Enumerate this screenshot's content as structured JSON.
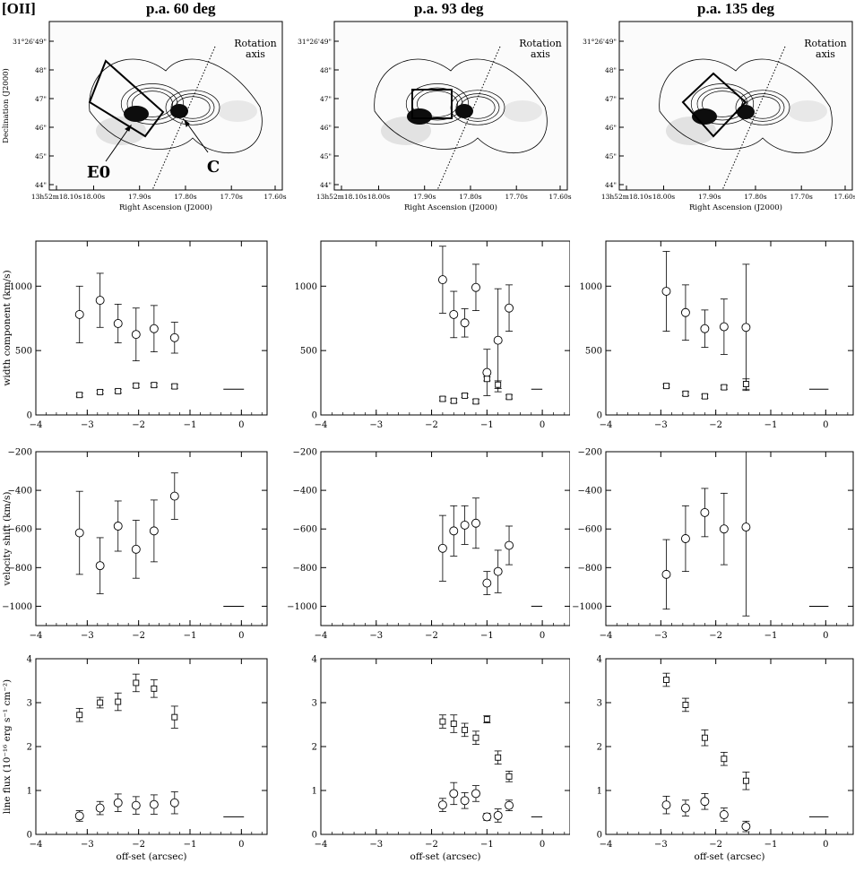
{
  "figure": {
    "label": "[OII]",
    "columns": [
      "p.a. 60 deg",
      "p.a. 93 deg",
      "p.a. 135 deg"
    ]
  },
  "images": {
    "ra_label": "Right Ascension (J2000)",
    "dec_label": "Declination (J2000)",
    "ra_ticks": [
      "13h52m18.10s",
      "18.00s",
      "17.90s",
      "17.80s",
      "17.70s",
      "17.60s"
    ],
    "dec_ticks": [
      "31°26'49\"",
      "48\"",
      "47\"",
      "46\"",
      "45\"",
      "44\""
    ],
    "rotation_label_1": "Rotation",
    "rotation_label_2": "axis",
    "label_e0": "E0",
    "label_c": "C"
  },
  "chart_data": [
    {
      "type": "scatter",
      "row": "width",
      "column": "p.a. 60 deg",
      "ylabel": "width component (km/s)",
      "xlim": [
        -4,
        0.5
      ],
      "ylim": [
        0,
        1350
      ],
      "xticks": [
        -4,
        -3,
        -2,
        -1,
        0
      ],
      "yticks": [
        0,
        500,
        1000
      ],
      "series": [
        {
          "marker": "circle",
          "points": [
            [
              -3.15,
              780,
              220
            ],
            [
              -2.75,
              890,
              210
            ],
            [
              -2.4,
              710,
              150
            ],
            [
              -2.05,
              625,
              205
            ],
            [
              -1.7,
              670,
              180
            ],
            [
              -1.3,
              600,
              120
            ]
          ]
        },
        {
          "marker": "square",
          "points": [
            [
              -3.15,
              155,
              15
            ],
            [
              -2.75,
              178,
              15
            ],
            [
              -2.4,
              185,
              15
            ],
            [
              -2.05,
              228,
              15
            ],
            [
              -1.7,
              232,
              15
            ],
            [
              -1.3,
              222,
              15
            ]
          ]
        }
      ],
      "reference_line": {
        "x": [
          -0.35,
          0.05
        ],
        "y": 200
      }
    },
    {
      "type": "scatter",
      "row": "width",
      "column": "p.a. 93 deg",
      "ylabel": "",
      "xlim": [
        -4,
        0.5
      ],
      "ylim": [
        0,
        1350
      ],
      "xticks": [
        -4,
        -3,
        -2,
        -1,
        0
      ],
      "yticks": [
        0,
        500,
        1000
      ],
      "series": [
        {
          "marker": "circle",
          "points": [
            [
              -1.8,
              1050,
              260
            ],
            [
              -1.6,
              780,
              180
            ],
            [
              -1.4,
              715,
              110
            ],
            [
              -1.2,
              990,
              180
            ],
            [
              -1.0,
              330,
              180
            ],
            [
              -0.8,
              580,
              400
            ],
            [
              -0.6,
              830,
              180
            ]
          ]
        },
        {
          "marker": "square",
          "points": [
            [
              -1.8,
              125,
              15
            ],
            [
              -1.6,
              110,
              15
            ],
            [
              -1.4,
              150,
              15
            ],
            [
              -1.2,
              105,
              15
            ],
            [
              -1.0,
              280,
              15
            ],
            [
              -0.8,
              235,
              30
            ],
            [
              -0.6,
              140,
              15
            ]
          ]
        }
      ],
      "reference_line": {
        "x": [
          -0.2,
          0.0
        ],
        "y": 200
      }
    },
    {
      "type": "scatter",
      "row": "width",
      "column": "p.a. 135 deg",
      "ylabel": "",
      "xlim": [
        -4,
        0.5
      ],
      "ylim": [
        0,
        1350
      ],
      "xticks": [
        -4,
        -3,
        -2,
        -1,
        0
      ],
      "yticks": [
        0,
        500,
        1000
      ],
      "series": [
        {
          "marker": "circle",
          "points": [
            [
              -2.9,
              960,
              310
            ],
            [
              -2.55,
              795,
              215
            ],
            [
              -2.2,
              670,
              145
            ],
            [
              -1.85,
              685,
              215
            ],
            [
              -1.45,
              680,
              490
            ]
          ]
        },
        {
          "marker": "square",
          "points": [
            [
              -2.9,
              225,
              15
            ],
            [
              -2.55,
              165,
              15
            ],
            [
              -2.2,
              145,
              15
            ],
            [
              -1.85,
              215,
              15
            ],
            [
              -1.45,
              240,
              40
            ]
          ]
        }
      ],
      "reference_line": {
        "x": [
          -0.3,
          0.05
        ],
        "y": 200
      }
    },
    {
      "type": "scatter",
      "row": "velocity",
      "column": "p.a. 60 deg",
      "ylabel": "velocity shift (km/s)",
      "xlim": [
        -4,
        0.5
      ],
      "ylim": [
        -1100,
        -200
      ],
      "y_inverted": true,
      "xticks": [
        -4,
        -3,
        -2,
        -1,
        0
      ],
      "yticks": [
        -200,
        -400,
        -600,
        -800,
        -1000
      ],
      "series": [
        {
          "marker": "circle",
          "points": [
            [
              -3.15,
              -620,
              215
            ],
            [
              -2.75,
              -790,
              145
            ],
            [
              -2.4,
              -585,
              130
            ],
            [
              -2.05,
              -705,
              150
            ],
            [
              -1.7,
              -610,
              160
            ],
            [
              -1.3,
              -430,
              120
            ]
          ]
        }
      ],
      "reference_line": {
        "x": [
          -0.35,
          0.05
        ],
        "y": -1000
      }
    },
    {
      "type": "scatter",
      "row": "velocity",
      "column": "p.a. 93 deg",
      "ylabel": "",
      "xlim": [
        -4,
        0.5
      ],
      "ylim": [
        -1100,
        -200
      ],
      "y_inverted": true,
      "xticks": [
        -4,
        -3,
        -2,
        -1,
        0
      ],
      "yticks": [
        -200,
        -400,
        -600,
        -800,
        -1000
      ],
      "series": [
        {
          "marker": "circle",
          "points": [
            [
              -1.8,
              -700,
              170
            ],
            [
              -1.6,
              -610,
              130
            ],
            [
              -1.4,
              -580,
              100
            ],
            [
              -1.2,
              -570,
              130
            ],
            [
              -1.0,
              -880,
              60
            ],
            [
              -0.8,
              -820,
              110
            ],
            [
              -0.6,
              -685,
              100
            ]
          ]
        }
      ],
      "reference_line": {
        "x": [
          -0.2,
          0.0
        ],
        "y": -1000
      }
    },
    {
      "type": "scatter",
      "row": "velocity",
      "column": "p.a. 135 deg",
      "ylabel": "",
      "xlim": [
        -4,
        0.5
      ],
      "ylim": [
        -1100,
        -200
      ],
      "y_inverted": true,
      "xticks": [
        -4,
        -3,
        -2,
        -1,
        0
      ],
      "yticks": [
        -200,
        -400,
        -600,
        -800,
        -1000
      ],
      "series": [
        {
          "marker": "circle",
          "points": [
            [
              -2.9,
              -835,
              180
            ],
            [
              -2.55,
              -650,
              170
            ],
            [
              -2.2,
              -515,
              125
            ],
            [
              -1.85,
              -600,
              185
            ],
            [
              -1.45,
              -590,
              460
            ]
          ]
        }
      ],
      "reference_line": {
        "x": [
          -0.3,
          0.05
        ],
        "y": -1000
      }
    },
    {
      "type": "scatter",
      "row": "flux",
      "column": "p.a. 60 deg",
      "ylabel": "line flux (10⁻¹⁶ erg s⁻¹ cm⁻²)",
      "xlabel": "off-set (arcsec)",
      "xlim": [
        -4,
        0.5
      ],
      "ylim": [
        0,
        4
      ],
      "xticks": [
        -4,
        -3,
        -2,
        -1,
        0
      ],
      "yticks": [
        0,
        1,
        2,
        3,
        4
      ],
      "series": [
        {
          "marker": "square",
          "points": [
            [
              -3.15,
              2.72,
              0.15
            ],
            [
              -2.75,
              3.0,
              0.12
            ],
            [
              -2.4,
              3.02,
              0.2
            ],
            [
              -2.05,
              3.45,
              0.2
            ],
            [
              -1.7,
              3.32,
              0.2
            ],
            [
              -1.3,
              2.67,
              0.25
            ]
          ]
        },
        {
          "marker": "circle",
          "points": [
            [
              -3.15,
              0.42,
              0.12
            ],
            [
              -2.75,
              0.6,
              0.15
            ],
            [
              -2.4,
              0.72,
              0.2
            ],
            [
              -2.05,
              0.66,
              0.2
            ],
            [
              -1.7,
              0.68,
              0.22
            ],
            [
              -1.3,
              0.72,
              0.25
            ]
          ]
        }
      ],
      "reference_line": {
        "x": [
          -0.35,
          0.05
        ],
        "y": 0.4
      }
    },
    {
      "type": "scatter",
      "row": "flux",
      "column": "p.a. 93 deg",
      "ylabel": "",
      "xlabel": "off-set (arcsec)",
      "xlim": [
        -4,
        0.5
      ],
      "ylim": [
        0,
        4
      ],
      "xticks": [
        -4,
        -3,
        -2,
        -1,
        0
      ],
      "yticks": [
        0,
        1,
        2,
        3,
        4
      ],
      "series": [
        {
          "marker": "square",
          "points": [
            [
              -1.8,
              2.57,
              0.15
            ],
            [
              -1.6,
              2.52,
              0.2
            ],
            [
              -1.4,
              2.38,
              0.15
            ],
            [
              -1.2,
              2.2,
              0.15
            ],
            [
              -1.0,
              2.62,
              0.08
            ],
            [
              -0.8,
              1.75,
              0.15
            ],
            [
              -0.6,
              1.32,
              0.12
            ]
          ]
        },
        {
          "marker": "circle",
          "points": [
            [
              -1.8,
              0.67,
              0.15
            ],
            [
              -1.6,
              0.93,
              0.25
            ],
            [
              -1.4,
              0.77,
              0.18
            ],
            [
              -1.2,
              0.93,
              0.18
            ],
            [
              -1.0,
              0.4,
              0.08
            ],
            [
              -0.8,
              0.43,
              0.15
            ],
            [
              -0.6,
              0.66,
              0.12
            ]
          ]
        }
      ],
      "reference_line": {
        "x": [
          -0.2,
          0.0
        ],
        "y": 0.4
      }
    },
    {
      "type": "scatter",
      "row": "flux",
      "column": "p.a. 135 deg",
      "ylabel": "",
      "xlabel": "off-set (arcsec)",
      "xlim": [
        -4,
        0.5
      ],
      "ylim": [
        0,
        4
      ],
      "xticks": [
        -4,
        -3,
        -2,
        -1,
        0
      ],
      "yticks": [
        0,
        1,
        2,
        3,
        4
      ],
      "series": [
        {
          "marker": "square",
          "points": [
            [
              -2.9,
              3.52,
              0.15
            ],
            [
              -2.55,
              2.95,
              0.15
            ],
            [
              -2.2,
              2.2,
              0.18
            ],
            [
              -1.85,
              1.72,
              0.15
            ],
            [
              -1.45,
              1.22,
              0.2
            ]
          ]
        },
        {
          "marker": "circle",
          "points": [
            [
              -2.9,
              0.67,
              0.2
            ],
            [
              -2.55,
              0.6,
              0.18
            ],
            [
              -2.2,
              0.75,
              0.18
            ],
            [
              -1.85,
              0.45,
              0.15
            ],
            [
              -1.45,
              0.18,
              0.12
            ]
          ]
        }
      ],
      "reference_line": {
        "x": [
          -0.3,
          0.05
        ],
        "y": 0.4
      }
    }
  ]
}
